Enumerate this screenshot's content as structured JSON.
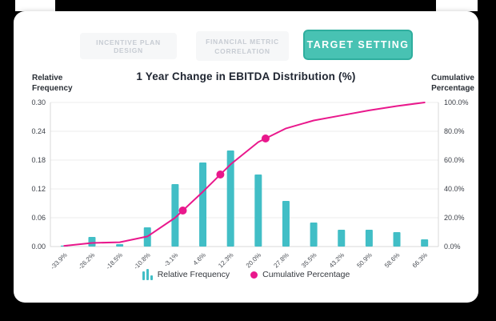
{
  "tabs": [
    {
      "label": "INCENTIVE PLAN DESIGN",
      "active": false
    },
    {
      "label": "FINANCIAL METRIC CORRELATION",
      "active": false
    },
    {
      "label": "TARGET SETTING",
      "active": true
    }
  ],
  "title": "1 Year Change in EBITDA Distribution (%)",
  "axis_titles": {
    "left": "Relative\nFrequency",
    "right": "Cumulative\nPercentage"
  },
  "legend": [
    {
      "label": "Relative Frequency",
      "marker": "bars-icon"
    },
    {
      "label": "Cumulative Percentage",
      "marker": "dot-icon"
    }
  ],
  "colors": {
    "bar": "#41BEC6",
    "line": "#E9188C",
    "dot": "#E9188C",
    "button_bg": "#48C2B3",
    "button_border": "#2FAE9E",
    "grid": "#ECECEC",
    "axis_border": "#D8D8D8",
    "tick_text": "#3C4048",
    "x_label_text": "#4A4E55"
  },
  "chart_data": {
    "type": "bar",
    "subtype": "pareto (histogram bars + cumulative line)",
    "title": "1 Year Change in EBITDA Distribution (%)",
    "categories": [
      "-33.9%",
      "-26.2%",
      "-18.5%",
      "-10.8%",
      "-3.1%",
      "4.6%",
      "12.3%",
      "20.0%",
      "27.8%",
      "35.5%",
      "43.2%",
      "50.9%",
      "58.6%",
      "66.3%"
    ],
    "series": [
      {
        "name": "Relative Frequency",
        "type": "bar",
        "axis": "left",
        "values": [
          0.002,
          0.02,
          0.005,
          0.04,
          0.13,
          0.175,
          0.2,
          0.15,
          0.095,
          0.05,
          0.035,
          0.035,
          0.03,
          0.015
        ]
      },
      {
        "name": "Cumulative Percentage",
        "type": "line",
        "axis": "right",
        "values": [
          0.5,
          2.5,
          3.0,
          7.0,
          20.0,
          38.0,
          57.0,
          72.5,
          82.0,
          87.5,
          91.0,
          94.5,
          97.5,
          100.0
        ]
      }
    ],
    "left_axis": {
      "label": "Relative Frequency",
      "max": 0.3,
      "min": 0,
      "ticks": [
        "0.00",
        "0.06",
        "0.12",
        "0.18",
        "0.24",
        "0.30"
      ]
    },
    "right_axis": {
      "label": "Cumulative Percentage",
      "max": 100,
      "min": 0,
      "ticks": [
        "0.0%",
        "20.0%",
        "40.0%",
        "60.0%",
        "80.0%",
        "100.0%"
      ]
    },
    "percentile_markers": [
      25,
      50,
      75
    ],
    "grid": true,
    "legend_position": "bottom",
    "x_label_rotation": -45
  }
}
